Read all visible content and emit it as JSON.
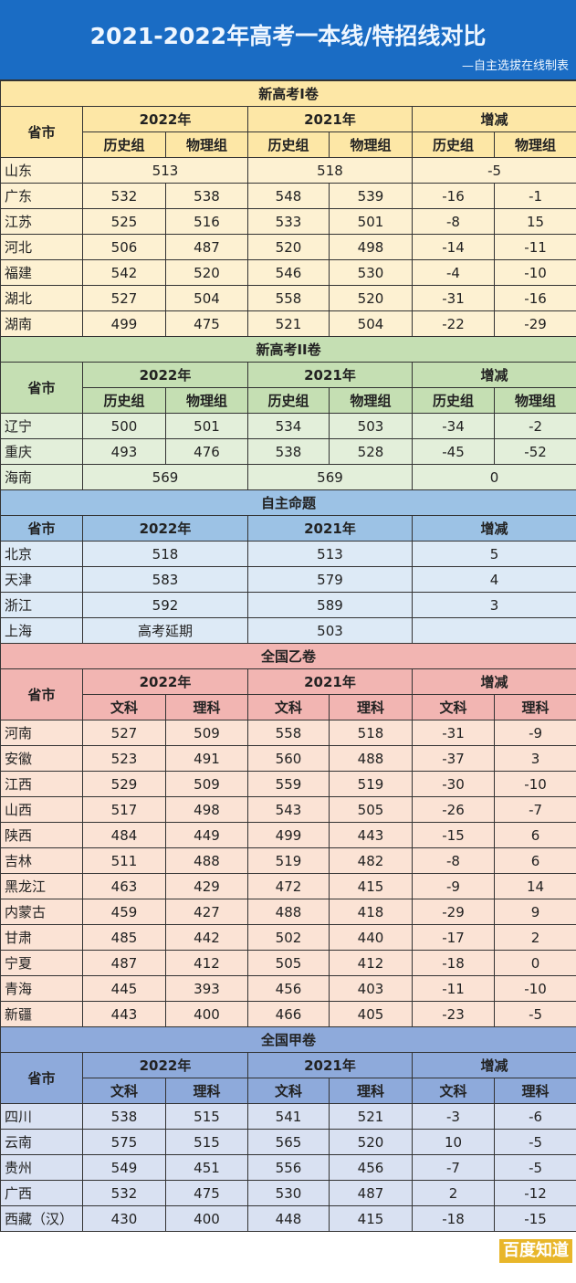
{
  "title": "2021-2022年高考一本线/特招线对比",
  "subtitle": "—自主选拔在线制表",
  "watermark_badge": "百度知道",
  "sections": [
    {
      "name": "新高考I卷",
      "colors": {
        "header": "#fde7a6",
        "row": "#fdf1d2"
      },
      "province_header": "省市",
      "years": [
        "2022年",
        "2021年",
        "增减"
      ],
      "subcols": [
        "历史组",
        "物理组",
        "历史组",
        "物理组",
        "历史组",
        "物理组"
      ],
      "rows": [
        {
          "province": "山东",
          "merged": true,
          "values": [
            "513",
            "518",
            "-5"
          ]
        },
        {
          "province": "广东",
          "values": [
            "532",
            "538",
            "548",
            "539",
            "-16",
            "-1"
          ]
        },
        {
          "province": "江苏",
          "values": [
            "525",
            "516",
            "533",
            "501",
            "-8",
            "15"
          ]
        },
        {
          "province": "河北",
          "values": [
            "506",
            "487",
            "520",
            "498",
            "-14",
            "-11"
          ]
        },
        {
          "province": "福建",
          "values": [
            "542",
            "520",
            "546",
            "530",
            "-4",
            "-10"
          ]
        },
        {
          "province": "湖北",
          "values": [
            "527",
            "504",
            "558",
            "520",
            "-31",
            "-16"
          ]
        },
        {
          "province": "湖南",
          "values": [
            "499",
            "475",
            "521",
            "504",
            "-22",
            "-29"
          ]
        }
      ]
    },
    {
      "name": "新高考II卷",
      "colors": {
        "header": "#c5dfb3",
        "row": "#e3efda"
      },
      "province_header": "省市",
      "years": [
        "2022年",
        "2021年",
        "增减"
      ],
      "subcols": [
        "历史组",
        "物理组",
        "历史组",
        "物理组",
        "历史组",
        "物理组"
      ],
      "rows": [
        {
          "province": "辽宁",
          "values": [
            "500",
            "501",
            "534",
            "503",
            "-34",
            "-2"
          ]
        },
        {
          "province": "重庆",
          "values": [
            "493",
            "476",
            "538",
            "528",
            "-45",
            "-52"
          ]
        },
        {
          "province": "海南",
          "merged": true,
          "values": [
            "569",
            "569",
            "0"
          ]
        }
      ]
    },
    {
      "name": "自主命题",
      "colors": {
        "header": "#9cc2e5",
        "row": "#ddeaf6"
      },
      "province_header": "省市",
      "years": [
        "2022年",
        "2021年",
        "增减"
      ],
      "subcols": [],
      "rows": [
        {
          "province": "北京",
          "merged": true,
          "values": [
            "518",
            "513",
            "5"
          ]
        },
        {
          "province": "天津",
          "merged": true,
          "values": [
            "583",
            "579",
            "4"
          ]
        },
        {
          "province": "浙江",
          "merged": true,
          "values": [
            "592",
            "589",
            "3"
          ]
        },
        {
          "province": "上海",
          "merged": true,
          "values": [
            "高考延期",
            "503",
            ""
          ]
        }
      ]
    },
    {
      "name": "全国乙卷",
      "colors": {
        "header": "#f2b5b2",
        "row": "#fbe3d5"
      },
      "province_header": "省市",
      "years": [
        "2022年",
        "2021年",
        "增减"
      ],
      "subcols": [
        "文科",
        "理科",
        "文科",
        "理科",
        "文科",
        "理科"
      ],
      "rows": [
        {
          "province": "河南",
          "values": [
            "527",
            "509",
            "558",
            "518",
            "-31",
            "-9"
          ]
        },
        {
          "province": "安徽",
          "values": [
            "523",
            "491",
            "560",
            "488",
            "-37",
            "3"
          ]
        },
        {
          "province": "江西",
          "values": [
            "529",
            "509",
            "559",
            "519",
            "-30",
            "-10"
          ]
        },
        {
          "province": "山西",
          "values": [
            "517",
            "498",
            "543",
            "505",
            "-26",
            "-7"
          ]
        },
        {
          "province": "陕西",
          "values": [
            "484",
            "449",
            "499",
            "443",
            "-15",
            "6"
          ]
        },
        {
          "province": "吉林",
          "values": [
            "511",
            "488",
            "519",
            "482",
            "-8",
            "6"
          ]
        },
        {
          "province": "黑龙江",
          "values": [
            "463",
            "429",
            "472",
            "415",
            "-9",
            "14"
          ]
        },
        {
          "province": "内蒙古",
          "values": [
            "459",
            "427",
            "488",
            "418",
            "-29",
            "9"
          ]
        },
        {
          "province": "甘肃",
          "values": [
            "485",
            "442",
            "502",
            "440",
            "-17",
            "2"
          ]
        },
        {
          "province": "宁夏",
          "values": [
            "487",
            "412",
            "505",
            "412",
            "-18",
            "0"
          ]
        },
        {
          "province": "青海",
          "values": [
            "445",
            "393",
            "456",
            "403",
            "-11",
            "-10"
          ]
        },
        {
          "province": "新疆",
          "values": [
            "443",
            "400",
            "466",
            "405",
            "-23",
            "-5"
          ]
        }
      ]
    },
    {
      "name": "全国甲卷",
      "colors": {
        "header": "#8eaadb",
        "row": "#d9e1f2"
      },
      "province_header": "省市",
      "years": [
        "2022年",
        "2021年",
        "增减"
      ],
      "subcols": [
        "文科",
        "理科",
        "文科",
        "理科",
        "文科",
        "理科"
      ],
      "rows": [
        {
          "province": "四川",
          "values": [
            "538",
            "515",
            "541",
            "521",
            "-3",
            "-6"
          ]
        },
        {
          "province": "云南",
          "values": [
            "575",
            "515",
            "565",
            "520",
            "10",
            "-5"
          ]
        },
        {
          "province": "贵州",
          "values": [
            "549",
            "451",
            "556",
            "456",
            "-7",
            "-5"
          ]
        },
        {
          "province": "广西",
          "values": [
            "532",
            "475",
            "530",
            "487",
            "2",
            "-12"
          ]
        },
        {
          "province": "西藏（汉）",
          "values": [
            "430",
            "400",
            "448",
            "415",
            "-18",
            "-15"
          ]
        }
      ]
    }
  ]
}
